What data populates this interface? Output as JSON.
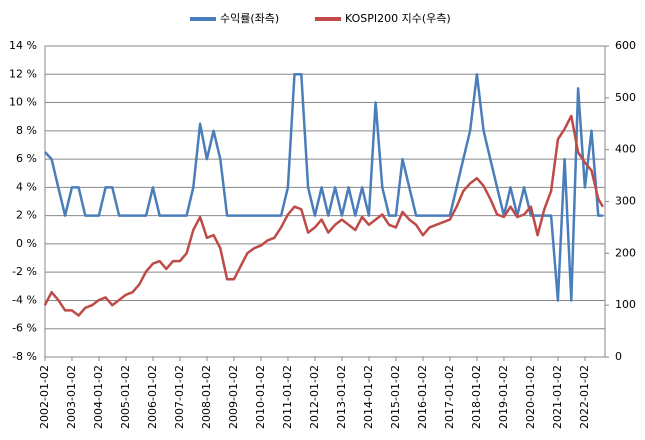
{
  "chart_data": {
    "type": "line",
    "x": [
      "2002-01-01",
      "2002-04-01",
      "2002-07-01",
      "2002-10-01",
      "2003-01-01",
      "2003-04-01",
      "2003-07-01",
      "2003-10-01",
      "2004-01-01",
      "2004-04-01",
      "2004-07-01",
      "2004-10-01",
      "2005-01-01",
      "2005-04-01",
      "2005-07-01",
      "2005-10-01",
      "2006-01-01",
      "2006-04-01",
      "2006-07-01",
      "2006-10-01",
      "2007-01-01",
      "2007-04-01",
      "2007-07-01",
      "2007-10-01",
      "2008-01-01",
      "2008-04-01",
      "2008-07-01",
      "2008-10-01",
      "2009-01-01",
      "2009-04-01",
      "2009-07-01",
      "2009-10-01",
      "2010-01-01",
      "2010-04-01",
      "2010-07-01",
      "2010-10-01",
      "2011-01-01",
      "2011-04-01",
      "2011-07-01",
      "2011-10-01",
      "2012-01-01",
      "2012-04-01",
      "2012-07-01",
      "2012-10-01",
      "2013-01-01",
      "2013-04-01",
      "2013-07-01",
      "2013-10-01",
      "2014-01-01",
      "2014-04-01",
      "2014-07-01",
      "2014-10-01",
      "2015-01-01",
      "2015-04-01",
      "2015-07-01",
      "2015-10-01",
      "2016-01-01",
      "2016-04-01",
      "2016-07-01",
      "2016-10-01",
      "2017-01-01",
      "2017-04-01",
      "2017-07-01",
      "2017-10-01",
      "2018-01-01",
      "2018-04-01",
      "2018-07-01",
      "2018-10-01",
      "2019-01-01",
      "2019-04-01",
      "2019-07-01",
      "2019-10-01",
      "2020-01-01",
      "2020-04-01",
      "2020-07-01",
      "2020-10-01",
      "2021-01-01",
      "2021-04-01",
      "2021-07-01",
      "2021-10-01",
      "2022-01-01",
      "2022-04-01",
      "2022-07-01",
      "2022-09-01"
    ],
    "series": [
      {
        "name": "수익률(좌측)",
        "color": "#4a7ebb",
        "values": [
          6.5,
          6,
          4,
          2,
          4,
          4,
          2,
          2,
          2,
          4,
          4,
          2,
          2,
          2,
          2,
          2,
          4,
          2,
          2,
          2,
          2,
          2,
          4,
          8.5,
          6,
          8,
          6,
          2,
          2,
          2,
          2,
          2,
          2,
          2,
          2,
          2,
          4,
          12,
          12,
          4,
          2,
          4,
          2,
          4,
          2,
          4,
          2,
          4,
          2,
          10,
          4,
          2,
          2,
          6,
          4,
          2,
          2,
          2,
          2,
          2,
          2,
          4,
          6,
          8,
          12,
          8,
          6,
          4,
          2,
          4,
          2,
          4,
          2,
          2,
          2,
          2,
          -4,
          6,
          -4,
          11,
          4,
          8,
          2,
          2
        ]
      },
      {
        "name": "KOSPI200 지수(우측)",
        "color": "#be4b48",
        "axis": "y2",
        "values": [
          100,
          125,
          110,
          90,
          90,
          80,
          95,
          100,
          110,
          115,
          100,
          110,
          120,
          125,
          140,
          165,
          180,
          185,
          170,
          185,
          185,
          200,
          245,
          270,
          230,
          235,
          210,
          150,
          150,
          175,
          200,
          210,
          215,
          225,
          230,
          250,
          275,
          290,
          285,
          240,
          250,
          265,
          240,
          255,
          265,
          255,
          245,
          270,
          255,
          265,
          275,
          255,
          250,
          280,
          265,
          255,
          235,
          250,
          255,
          260,
          265,
          290,
          320,
          335,
          345,
          330,
          305,
          275,
          270,
          290,
          270,
          275,
          290,
          235,
          285,
          320,
          420,
          440,
          465,
          395,
          375,
          360,
          305,
          290
        ]
      }
    ],
    "xlim": [
      "2002-01-02",
      "2022-09-30"
    ],
    "xticks": [
      "2002-01-02",
      "2003-01-02",
      "2004-01-02",
      "2005-01-02",
      "2006-01-02",
      "2007-01-02",
      "2008-01-02",
      "2009-01-02",
      "2010-01-02",
      "2011-01-02",
      "2012-01-02",
      "2013-01-02",
      "2014-01-02",
      "2015-01-02",
      "2016-01-02",
      "2017-01-02",
      "2018-01-02",
      "2019-01-02",
      "2020-01-02",
      "2021-01-02",
      "2022-01-02"
    ],
    "ylim": [
      -8,
      14
    ],
    "yticks": [
      {
        "value": -8,
        "label": "-8 %"
      },
      {
        "value": -6,
        "label": "-6 %"
      },
      {
        "value": -4,
        "label": "-4 %"
      },
      {
        "value": -2,
        "label": "-2 %"
      },
      {
        "value": 0,
        "label": "0 %"
      },
      {
        "value": 2,
        "label": "2 %"
      },
      {
        "value": 4,
        "label": "4 %"
      },
      {
        "value": 6,
        "label": "6 %"
      },
      {
        "value": 8,
        "label": "8 %"
      },
      {
        "value": 10,
        "label": "10 %"
      },
      {
        "value": 12,
        "label": "12 %"
      },
      {
        "value": 14,
        "label": "14 %"
      }
    ],
    "y2lim": [
      0,
      600
    ],
    "y2ticks": [
      0,
      100,
      200,
      300,
      400,
      500,
      600
    ],
    "grid": true
  }
}
